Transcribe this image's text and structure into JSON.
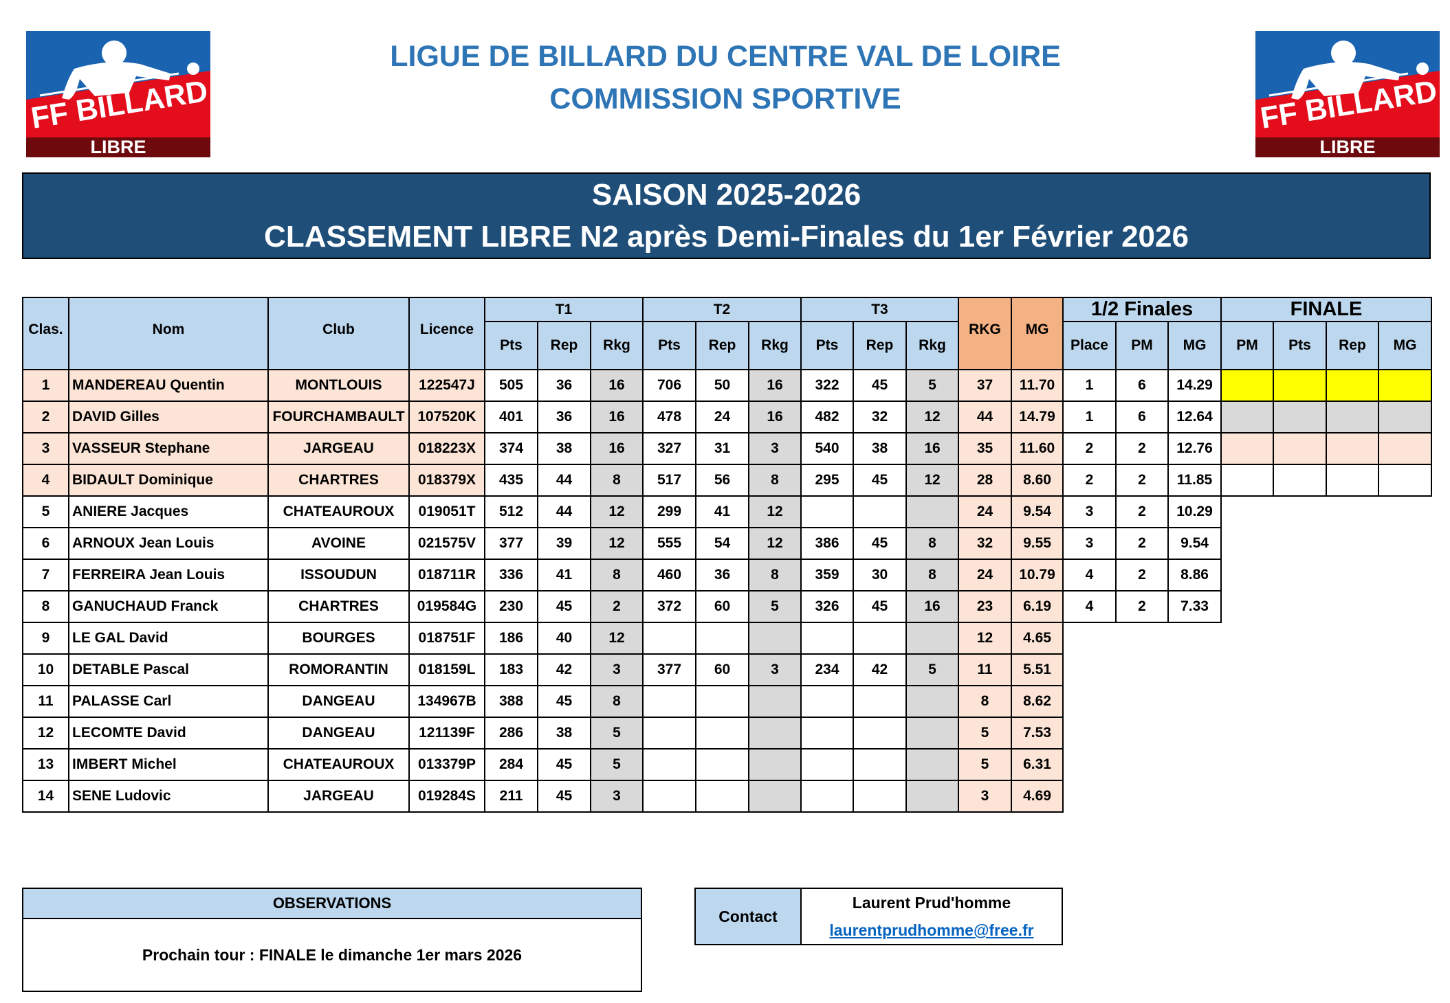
{
  "logo": {
    "text": "FF BILLARD",
    "subtitle": "LIBRE",
    "colors": {
      "blue": "#1a63b0",
      "red": "#e30d1c",
      "dark_red": "#6e0a0e"
    }
  },
  "header": {
    "line1": "LIGUE DE BILLARD DU CENTRE VAL DE LOIRE",
    "line2": "COMMISSION SPORTIVE"
  },
  "banner": {
    "season": "SAISON 2025-2026",
    "title": "CLASSEMENT LIBRE N2 après Demi-Finales du 1er Février 2026"
  },
  "table": {
    "headers": {
      "clas": "Clas.",
      "nom": "Nom",
      "club": "Club",
      "licence": "Licence",
      "t1": "T1",
      "t2": "T2",
      "t3": "T3",
      "rkg": "RKG",
      "mg": "MG",
      "demi": "1/2 Finales",
      "finale": "FINALE",
      "t_sub": [
        "Pts",
        "Rep",
        "Rkg"
      ],
      "demi_sub": [
        "Place",
        "PM",
        "MG"
      ],
      "finale_sub": [
        "PM",
        "Pts",
        "Rep",
        "MG"
      ]
    },
    "rows": [
      {
        "clas": "1",
        "nom": "MANDEREAU Quentin",
        "club": "MONTLOUIS",
        "licence": "122547J",
        "t1": [
          "505",
          "36",
          "16"
        ],
        "t2": [
          "706",
          "50",
          "16"
        ],
        "t3": [
          "322",
          "45",
          "5"
        ],
        "rkg": "37",
        "mg": "11.70",
        "demi": [
          "1",
          "6",
          "14.29"
        ],
        "finale": [
          "",
          "",
          "",
          ""
        ]
      },
      {
        "clas": "2",
        "nom": "DAVID Gilles",
        "club": "FOURCHAMBAULT",
        "licence": "107520K",
        "t1": [
          "401",
          "36",
          "16"
        ],
        "t2": [
          "478",
          "24",
          "16"
        ],
        "t3": [
          "482",
          "32",
          "12"
        ],
        "rkg": "44",
        "mg": "14.79",
        "demi": [
          "1",
          "6",
          "12.64"
        ],
        "finale": [
          "",
          "",
          "",
          ""
        ]
      },
      {
        "clas": "3",
        "nom": "VASSEUR Stephane",
        "club": "JARGEAU",
        "licence": "018223X",
        "t1": [
          "374",
          "38",
          "16"
        ],
        "t2": [
          "327",
          "31",
          "3"
        ],
        "t3": [
          "540",
          "38",
          "16"
        ],
        "rkg": "35",
        "mg": "11.60",
        "demi": [
          "2",
          "2",
          "12.76"
        ],
        "finale": [
          "",
          "",
          "",
          ""
        ]
      },
      {
        "clas": "4",
        "nom": "BIDAULT Dominique",
        "club": "CHARTRES",
        "licence": "018379X",
        "t1": [
          "435",
          "44",
          "8"
        ],
        "t2": [
          "517",
          "56",
          "8"
        ],
        "t3": [
          "295",
          "45",
          "12"
        ],
        "rkg": "28",
        "mg": "8.60",
        "demi": [
          "2",
          "2",
          "11.85"
        ],
        "finale": [
          "",
          "",
          "",
          ""
        ]
      },
      {
        "clas": "5",
        "nom": "ANIERE Jacques",
        "club": "CHATEAUROUX",
        "licence": "019051T",
        "t1": [
          "512",
          "44",
          "12"
        ],
        "t2": [
          "299",
          "41",
          "12"
        ],
        "t3": [
          "",
          "",
          ""
        ],
        "rkg": "24",
        "mg": "9.54",
        "demi": [
          "3",
          "2",
          "10.29"
        ]
      },
      {
        "clas": "6",
        "nom": "ARNOUX Jean Louis",
        "club": "AVOINE",
        "licence": "021575V",
        "t1": [
          "377",
          "39",
          "12"
        ],
        "t2": [
          "555",
          "54",
          "12"
        ],
        "t3": [
          "386",
          "45",
          "8"
        ],
        "rkg": "32",
        "mg": "9.55",
        "demi": [
          "3",
          "2",
          "9.54"
        ]
      },
      {
        "clas": "7",
        "nom": "FERREIRA Jean Louis",
        "club": "ISSOUDUN",
        "licence": "018711R",
        "t1": [
          "336",
          "41",
          "8"
        ],
        "t2": [
          "460",
          "36",
          "8"
        ],
        "t3": [
          "359",
          "30",
          "8"
        ],
        "rkg": "24",
        "mg": "10.79",
        "demi": [
          "4",
          "2",
          "8.86"
        ]
      },
      {
        "clas": "8",
        "nom": "GANUCHAUD Franck",
        "club": "CHARTRES",
        "licence": "019584G",
        "t1": [
          "230",
          "45",
          "2"
        ],
        "t2": [
          "372",
          "60",
          "5"
        ],
        "t3": [
          "326",
          "45",
          "16"
        ],
        "rkg": "23",
        "mg": "6.19",
        "demi": [
          "4",
          "2",
          "7.33"
        ]
      },
      {
        "clas": "9",
        "nom": "LE GAL David",
        "club": "BOURGES",
        "licence": "018751F",
        "t1": [
          "186",
          "40",
          "12"
        ],
        "t2": [
          "",
          "",
          ""
        ],
        "t3": [
          "",
          "",
          ""
        ],
        "rkg": "12",
        "mg": "4.65"
      },
      {
        "clas": "10",
        "nom": "DETABLE Pascal",
        "club": "ROMORANTIN",
        "licence": "018159L",
        "t1": [
          "183",
          "42",
          "3"
        ],
        "t2": [
          "377",
          "60",
          "3"
        ],
        "t3": [
          "234",
          "42",
          "5"
        ],
        "rkg": "11",
        "mg": "5.51"
      },
      {
        "clas": "11",
        "nom": "PALASSE Carl",
        "club": "DANGEAU",
        "licence": "134967B",
        "t1": [
          "388",
          "45",
          "8"
        ],
        "t2": [
          "",
          "",
          ""
        ],
        "t3": [
          "",
          "",
          ""
        ],
        "rkg": "8",
        "mg": "8.62"
      },
      {
        "clas": "12",
        "nom": "LECOMTE David",
        "club": "DANGEAU",
        "licence": "121139F",
        "t1": [
          "286",
          "38",
          "5"
        ],
        "t2": [
          "",
          "",
          ""
        ],
        "t3": [
          "",
          "",
          ""
        ],
        "rkg": "5",
        "mg": "7.53"
      },
      {
        "clas": "13",
        "nom": "IMBERT Michel",
        "club": "CHATEAUROUX",
        "licence": "013379P",
        "t1": [
          "284",
          "45",
          "5"
        ],
        "t2": [
          "",
          "",
          ""
        ],
        "t3": [
          "",
          "",
          ""
        ],
        "rkg": "5",
        "mg": "6.31"
      },
      {
        "clas": "14",
        "nom": "SENE Ludovic",
        "club": "JARGEAU",
        "licence": "019284S",
        "t1": [
          "211",
          "45",
          "3"
        ],
        "t2": [
          "",
          "",
          ""
        ],
        "t3": [
          "",
          "",
          ""
        ],
        "rkg": "3",
        "mg": "4.69"
      }
    ],
    "finale_row_colors": [
      "#ffff00",
      "#d9d9d9",
      "#fce4d6",
      "#ffffff"
    ]
  },
  "observations": {
    "title": "OBSERVATIONS",
    "text": "Prochain tour : FINALE le dimanche 1er mars 2026"
  },
  "contact": {
    "label": "Contact",
    "name": "Laurent Prud'homme",
    "email": "laurentprudhomme@free.fr"
  }
}
